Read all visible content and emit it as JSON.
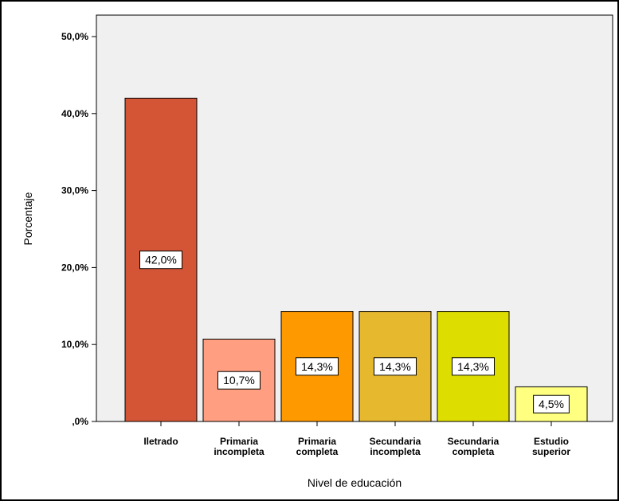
{
  "chart_data": {
    "type": "bar",
    "title": "",
    "xlabel": "Nivel de educación",
    "ylabel": "Porcentaje",
    "ylim": [
      0,
      50
    ],
    "yticks": [
      0,
      10,
      20,
      30,
      40,
      50
    ],
    "ytick_labels": [
      ",0%",
      "10,0%",
      "20,0%",
      "30,0%",
      "40,0%",
      "50,0%"
    ],
    "categories": [
      [
        "Iletrado"
      ],
      [
        "Primaria",
        "incompleta"
      ],
      [
        "Primaria",
        "completa"
      ],
      [
        "Secundaria",
        "incompleta"
      ],
      [
        "Secundaria",
        "completa"
      ],
      [
        "Estudio",
        "superior"
      ]
    ],
    "values": [
      42.0,
      10.7,
      14.3,
      14.3,
      14.3,
      4.5
    ],
    "data_labels": [
      "42,0%",
      "10,7%",
      "14,3%",
      "14,3%",
      "14,3%",
      "4,5%"
    ],
    "colors": [
      "#d35535",
      "#ff9e80",
      "#ff9900",
      "#e6b82e",
      "#dddd00",
      "#ffff80"
    ],
    "plot_background": "#f0f0f0",
    "grid": false,
    "legend": "none"
  }
}
